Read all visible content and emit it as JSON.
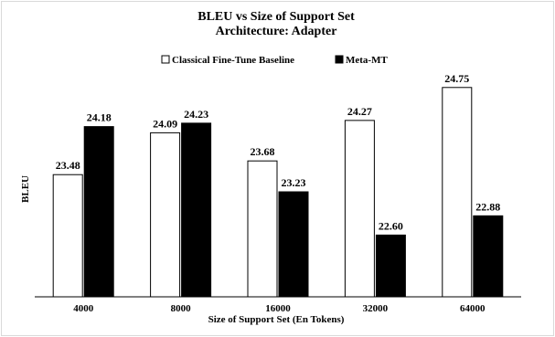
{
  "chart_data": {
    "type": "bar",
    "title": "BLEU vs Size of Support Set",
    "subtitle": "Architecture: Adapter",
    "xlabel": "Size of Support Set (En Tokens)",
    "ylabel": "BLEU",
    "categories": [
      "4000",
      "8000",
      "16000",
      "32000",
      "64000"
    ],
    "series": [
      {
        "name": "Classical Fine-Tune Baseline",
        "values": [
          23.48,
          24.09,
          23.68,
          24.27,
          24.75
        ],
        "labels": [
          "23.48",
          "24.09",
          "23.68",
          "24.27",
          "24.75"
        ],
        "color": "#ffffff"
      },
      {
        "name": "Meta-MT",
        "values": [
          24.18,
          24.23,
          23.23,
          22.6,
          22.88
        ],
        "labels": [
          "24.18",
          "24.23",
          "23.23",
          "22.60",
          "22.88"
        ],
        "color": "#000000"
      }
    ],
    "ylim": [
      21.7,
      25.0
    ],
    "legend_position": "top",
    "grid": false
  }
}
